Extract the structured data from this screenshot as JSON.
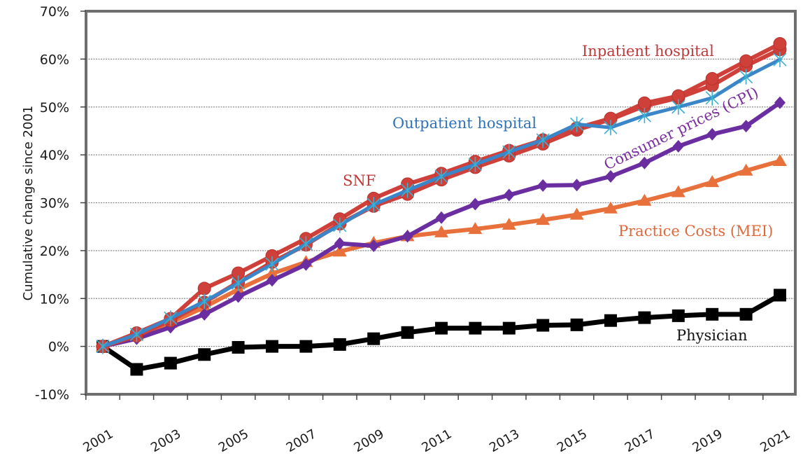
{
  "chart_data": {
    "type": "line",
    "title": "",
    "xlabel": "",
    "ylabel": "Cumulative change since 2001",
    "ylim": [
      -10,
      70
    ],
    "yticks": [
      -10,
      0,
      10,
      20,
      30,
      40,
      50,
      60,
      70
    ],
    "ytick_labels": [
      "-10%",
      "0%",
      "10%",
      "20%",
      "30%",
      "40%",
      "50%",
      "60%",
      "70%"
    ],
    "x": [
      2001,
      2002,
      2003,
      2004,
      2005,
      2006,
      2007,
      2008,
      2009,
      2010,
      2011,
      2012,
      2013,
      2014,
      2015,
      2016,
      2017,
      2018,
      2019,
      2020,
      2021
    ],
    "xtick_labels": [
      "2001",
      "2003",
      "2005",
      "2007",
      "2009",
      "2011",
      "2013",
      "2015",
      "2017",
      "2019",
      "2021"
    ],
    "grid": "horizontal dotted",
    "legend": "none (inline labels)",
    "series": [
      {
        "name": "Inpatient hospital",
        "color": "#d0403a",
        "marker": "circle",
        "values": [
          0,
          2.8,
          5.8,
          12.1,
          15.3,
          18.9,
          22.5,
          26.6,
          30.9,
          33.9,
          36.1,
          38.6,
          40.9,
          43.1,
          45.6,
          47.6,
          50.8,
          52.3,
          55.9,
          59.6,
          63.2
        ]
      },
      {
        "name": "SNF",
        "color": "#d0403a",
        "marker": "circle",
        "values": [
          0,
          2.2,
          5.4,
          9.2,
          13.4,
          17.6,
          21.2,
          25.6,
          29.3,
          31.8,
          34.8,
          37.4,
          39.8,
          42.3,
          45.2,
          47.4,
          50.2,
          51.9,
          54.5,
          58.6,
          62.0
        ]
      },
      {
        "name": "Outpatient hospital",
        "color": "#3a86c8",
        "marker": "asterisk",
        "values": [
          0,
          2.5,
          5.9,
          9.4,
          13.2,
          17.2,
          21.4,
          25.3,
          29.6,
          32.6,
          35.5,
          38.0,
          40.6,
          43.1,
          46.4,
          45.7,
          48.2,
          50.0,
          51.9,
          56.3,
          59.9
        ]
      },
      {
        "name": "Consumer prices (CPI)",
        "color": "#6a2ea0",
        "marker": "diamond",
        "values": [
          0,
          1.6,
          4.0,
          6.7,
          10.4,
          13.8,
          17.1,
          21.5,
          21.0,
          23.0,
          26.9,
          29.7,
          31.6,
          33.6,
          33.7,
          35.5,
          38.3,
          41.8,
          44.3,
          46.0,
          50.9
        ]
      },
      {
        "name": "Practice Costs (MEI)",
        "color": "#e8703a",
        "marker": "triangle",
        "values": [
          0,
          2.4,
          4.9,
          8.2,
          11.9,
          15.2,
          17.6,
          19.8,
          21.6,
          23.0,
          23.8,
          24.5,
          25.4,
          26.4,
          27.5,
          28.8,
          30.4,
          32.2,
          34.3,
          36.7,
          38.7
        ]
      },
      {
        "name": "Physician",
        "color": "#000000",
        "marker": "square",
        "values": [
          0,
          -4.8,
          -3.5,
          -1.7,
          -0.2,
          0,
          0,
          0.4,
          1.6,
          2.9,
          3.8,
          3.8,
          3.8,
          4.4,
          4.5,
          5.4,
          6.0,
          6.4,
          6.7,
          6.7,
          10.7
        ]
      }
    ],
    "annotations": [
      {
        "text": "Inpatient hospital",
        "series": "Inpatient hospital",
        "color": "#c0393a"
      },
      {
        "text": "Outpatient hospital",
        "series": "Outpatient hospital",
        "color": "#2f72b8"
      },
      {
        "text": "SNF",
        "series": "SNF",
        "color": "#c0393a"
      },
      {
        "text": "Consumer prices (CPI)",
        "series": "Consumer prices (CPI)",
        "color": "#7a2e9e"
      },
      {
        "text": "Practice Costs (MEI)",
        "series": "Practice Costs (MEI)",
        "color": "#e0683a"
      },
      {
        "text": "Physician",
        "series": "Physician",
        "color": "#111111"
      }
    ]
  }
}
